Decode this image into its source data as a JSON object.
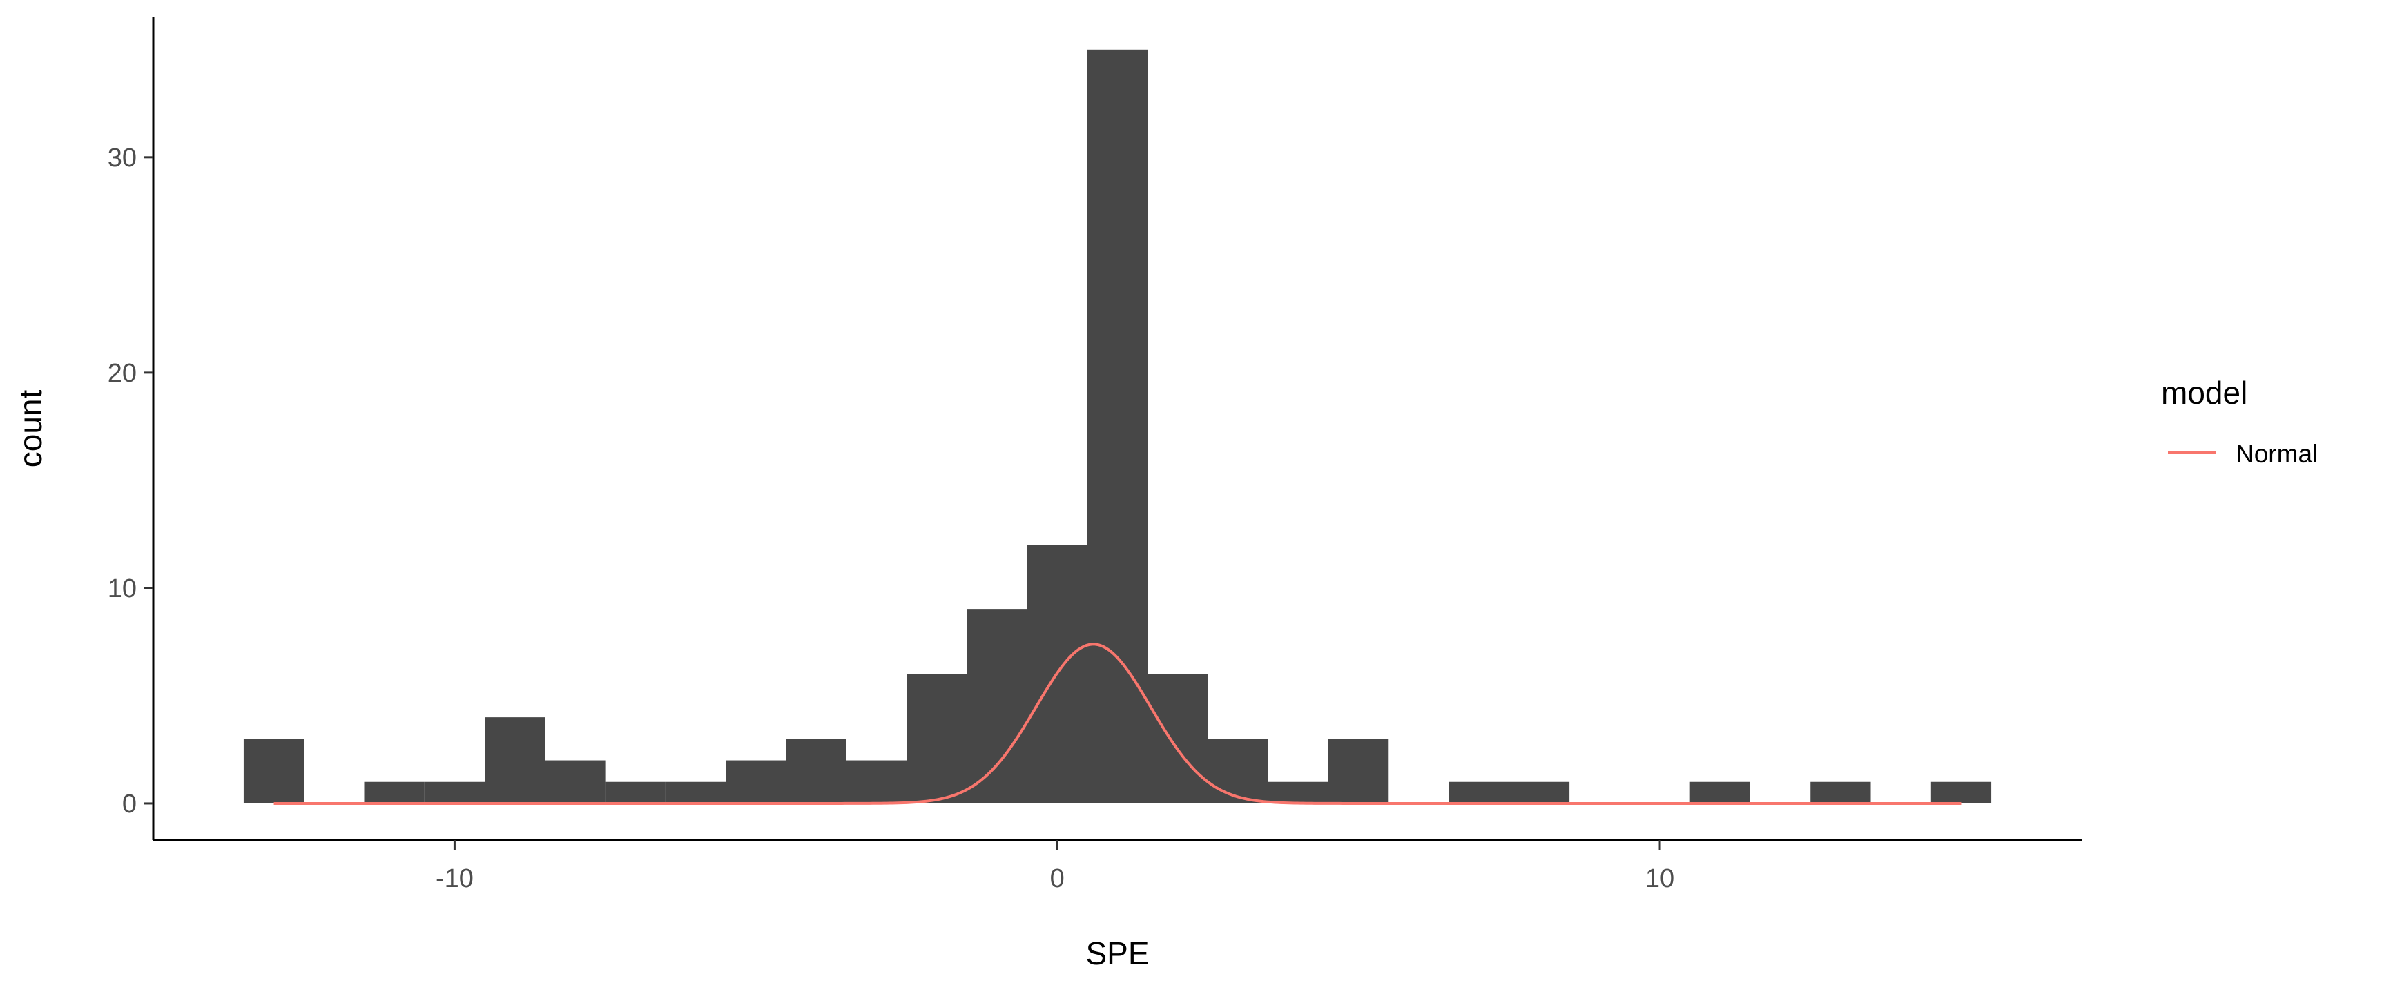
{
  "chart_data": {
    "type": "bar",
    "subtype": "histogram",
    "xlabel": "SPE",
    "ylabel": "count",
    "xlim": [
      -15,
      17
    ],
    "ylim": [
      -1.7,
      36.5
    ],
    "x_ticks": [
      -10,
      0,
      10
    ],
    "y_ticks": [
      0,
      10,
      20,
      30
    ],
    "x_tick_labels": [
      "-10",
      "0",
      "10"
    ],
    "y_tick_labels": [
      "0",
      "10",
      "20",
      "30"
    ],
    "grid": false,
    "bar_color": "#474747",
    "bin_width": 1,
    "bins": [
      {
        "start": -13.5,
        "count": 3
      },
      {
        "start": -12.5,
        "count": 0
      },
      {
        "start": -11.5,
        "count": 1
      },
      {
        "start": -10.5,
        "count": 1
      },
      {
        "start": -9.5,
        "count": 4
      },
      {
        "start": -8.5,
        "count": 2
      },
      {
        "start": -7.5,
        "count": 1
      },
      {
        "start": -6.5,
        "count": 1
      },
      {
        "start": -5.5,
        "count": 2
      },
      {
        "start": -4.5,
        "count": 3
      },
      {
        "start": -3.5,
        "count": 2
      },
      {
        "start": -2.5,
        "count": 6
      },
      {
        "start": -1.5,
        "count": 9
      },
      {
        "start": -0.5,
        "count": 12
      },
      {
        "start": 0.5,
        "count": 35
      },
      {
        "start": 1.5,
        "count": 6
      },
      {
        "start": 2.5,
        "count": 3
      },
      {
        "start": 3.5,
        "count": 1
      },
      {
        "start": 4.5,
        "count": 3
      },
      {
        "start": 5.5,
        "count": 0
      },
      {
        "start": 6.5,
        "count": 1
      },
      {
        "start": 7.5,
        "count": 1
      },
      {
        "start": 8.5,
        "count": 0
      },
      {
        "start": 9.5,
        "count": 0
      },
      {
        "start": 10.5,
        "count": 1
      },
      {
        "start": 11.5,
        "count": 0
      },
      {
        "start": 12.5,
        "count": 1
      },
      {
        "start": 13.5,
        "count": 0
      },
      {
        "start": 14.5,
        "count": 1
      }
    ],
    "density_curve": {
      "name": "Normal",
      "color": "#f8766d",
      "mean": 0.6,
      "sd": 0.95,
      "scale": 17.6,
      "x_range": [
        -13,
        15
      ]
    },
    "legend": {
      "title": "model",
      "placement": "right",
      "entries": [
        {
          "label": "Normal",
          "color": "#f8766d"
        }
      ]
    }
  }
}
